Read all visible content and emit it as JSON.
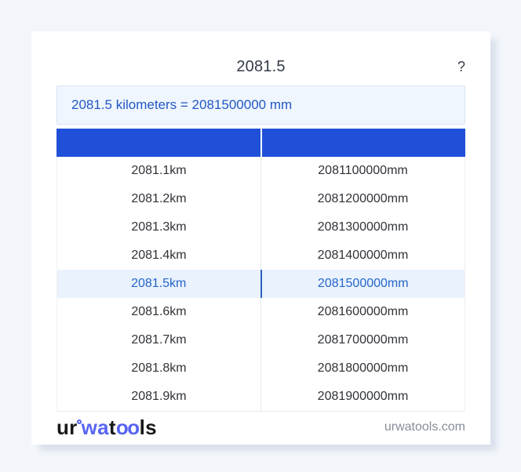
{
  "header": {
    "title": "2081.5",
    "help_label": "?"
  },
  "result": {
    "text": "2081.5 kilometers = 2081500000 mm"
  },
  "table": {
    "header": {
      "km_label": "",
      "mm_label": ""
    },
    "rows": [
      {
        "km": "2081.1km",
        "mm": "2081100000mm",
        "highlight": false
      },
      {
        "km": "2081.2km",
        "mm": "2081200000mm",
        "highlight": false
      },
      {
        "km": "2081.3km",
        "mm": "2081300000mm",
        "highlight": false
      },
      {
        "km": "2081.4km",
        "mm": "2081400000mm",
        "highlight": false
      },
      {
        "km": "2081.5km",
        "mm": "2081500000mm",
        "highlight": true
      },
      {
        "km": "2081.6km",
        "mm": "2081600000mm",
        "highlight": false
      },
      {
        "km": "2081.7km",
        "mm": "2081700000mm",
        "highlight": false
      },
      {
        "km": "2081.8km",
        "mm": "2081800000mm",
        "highlight": false
      },
      {
        "km": "2081.9km",
        "mm": "2081900000mm",
        "highlight": false
      }
    ]
  },
  "footer": {
    "logo_part_ur": "ur",
    "logo_part_wa": "wa",
    "logo_part_t": "t",
    "logo_part_oo": "oo",
    "logo_part_ls": "ls",
    "site": "urwatools.com"
  },
  "colors": {
    "page_background": "#f2f5fa",
    "table_header_blue": "#2150d8",
    "result_box_bg": "#eff6fe",
    "result_text_blue": "#2257c5",
    "highlight_row_bg": "#e9f2fd",
    "highlight_text_blue": "#2666c8",
    "logo_blue": "#5865f2"
  }
}
